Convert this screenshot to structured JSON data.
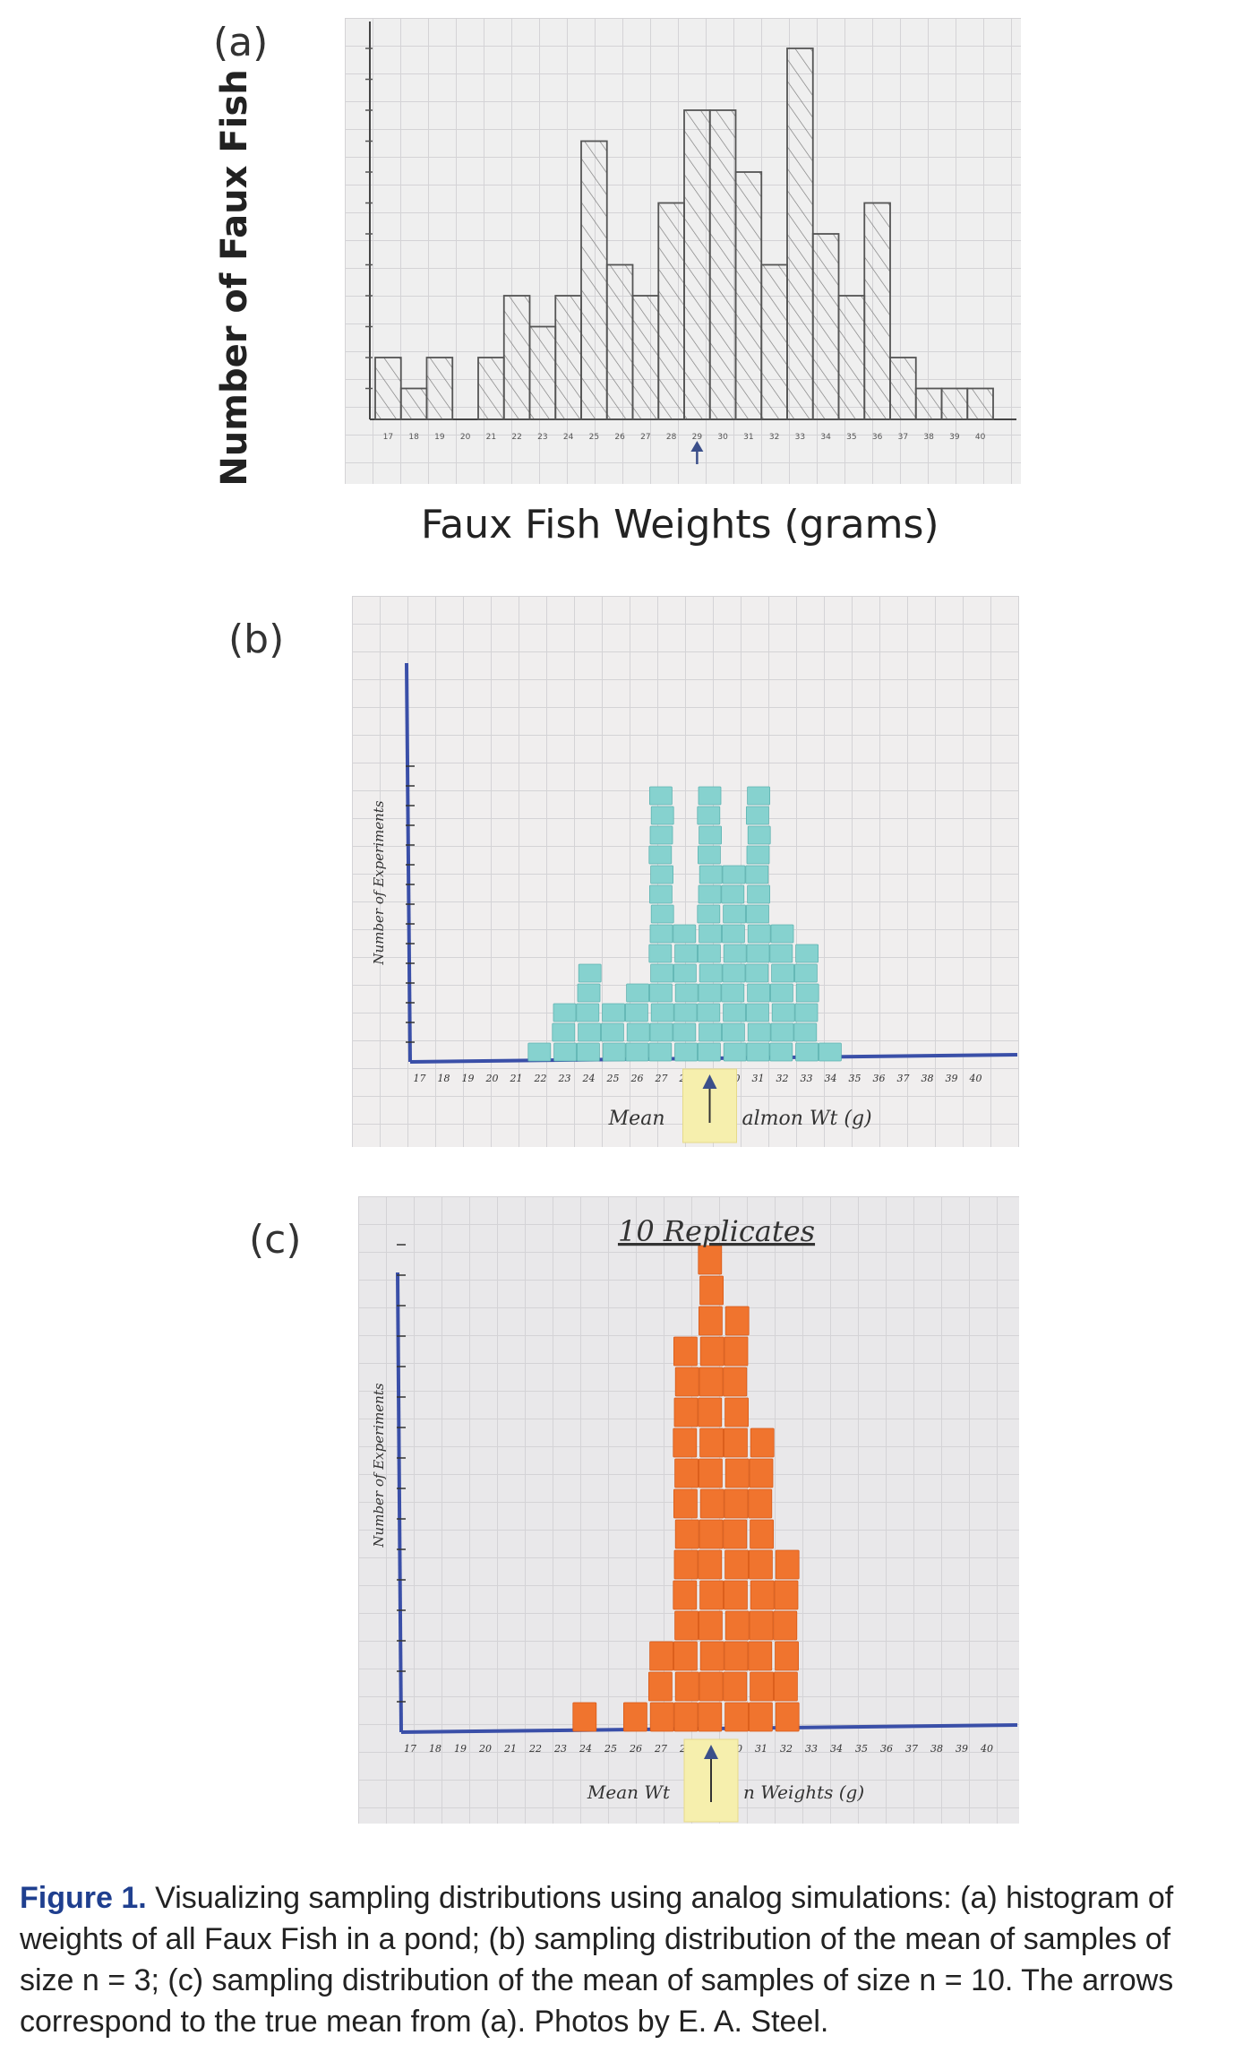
{
  "panels": {
    "a": {
      "label": "(a)",
      "ylabel": "Number of Faux Fish",
      "xlabel": "Faux Fish Weights (grams)"
    },
    "b": {
      "label": "(b)",
      "ylabel": "Number of Experiments",
      "xlabel_left": "Mean",
      "xlabel_right": "almon Wt (g)"
    },
    "c": {
      "label": "(c)",
      "title": "10 Replicates",
      "ylabel": "Number of Experiments",
      "xlabel_left": "Mean Wt",
      "xlabel_right": "n Weights (g)"
    }
  },
  "caption": {
    "figure_label": "Figure 1.",
    "text": "Visualizing sampling distributions using analog simulations: (a) histogram of weights of all Faux Fish in a pond; (b) sampling distribution of the mean of samples of size n = 3; (c) sampling distribution of the mean of samples of size n = 10. The arrows correspond to the true mean from (a). Photos by E. A. Steel."
  },
  "chart_data": [
    {
      "type": "bar",
      "panel": "a",
      "x": [
        17,
        18,
        19,
        20,
        21,
        22,
        23,
        24,
        25,
        26,
        27,
        28,
        29,
        30,
        31,
        32,
        33,
        34,
        35,
        36,
        37,
        38,
        39,
        40
      ],
      "values": [
        2,
        1,
        2,
        0,
        2,
        4,
        3,
        4,
        9,
        5,
        4,
        7,
        10,
        10,
        8,
        5,
        12,
        6,
        4,
        7,
        2,
        1,
        1,
        1
      ],
      "xlabel": "Faux Fish Weights (grams)",
      "ylabel": "Number of Faux Fish",
      "xlim": [
        17,
        40
      ],
      "true_mean_marker": 29,
      "grid": true
    },
    {
      "type": "bar",
      "panel": "b",
      "x": [
        22,
        23,
        24,
        25,
        26,
        27,
        28,
        29,
        30,
        31,
        32,
        33,
        34,
        35
      ],
      "values": [
        1,
        3,
        5,
        3,
        4,
        14,
        7,
        14,
        10,
        14,
        7,
        6,
        1,
        0
      ],
      "xlabel": "Mean Salmon Wt (g)",
      "ylabel": "Number of Experiments",
      "xlim": [
        17,
        40
      ],
      "true_mean_marker": 29,
      "grid": true
    },
    {
      "type": "bar",
      "panel": "c",
      "x": [
        24,
        25,
        26,
        27,
        28,
        29,
        30,
        31,
        32
      ],
      "values": [
        1,
        0,
        1,
        3,
        13,
        16,
        14,
        10,
        6
      ],
      "xlabel": "Mean Salmon Weights (g)",
      "ylabel": "Number of Experiments",
      "title": "10 Replicates",
      "xlim": [
        17,
        40
      ],
      "true_mean_marker": 29,
      "grid": true
    }
  ]
}
